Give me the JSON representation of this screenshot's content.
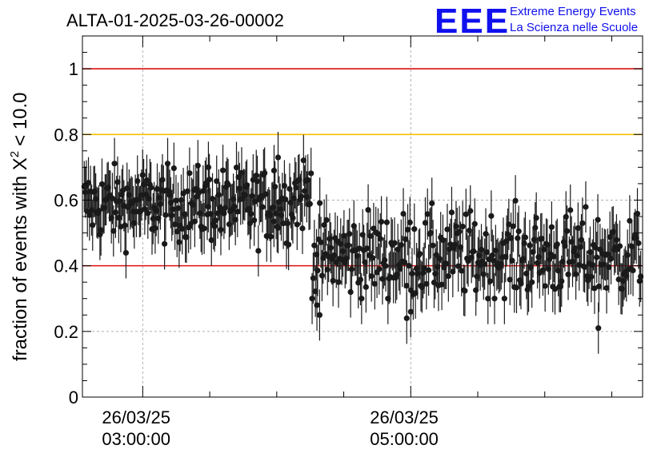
{
  "header": {
    "run_id": "ALTA-01-2025-03-26-00002",
    "logo_text": "EEE",
    "logo_line1": "Extreme Energy Events",
    "logo_line2": "La Scienza nelle Scuole"
  },
  "colors": {
    "logo_blue": "#1010ee",
    "threshold_red": "#e01010",
    "threshold_yellow": "#f5c000",
    "marker": "#1a1a1a",
    "grid": "#b0b0b0"
  },
  "chart_data": {
    "type": "scatter",
    "ylabel": "fraction of events with X² < 10.0",
    "ylabel_main": "fraction of events with X",
    "ylabel_sup": "2",
    "ylabel_tail": "< 10.0",
    "ylim": [
      0,
      1.1
    ],
    "y_ticks": [
      0,
      0.2,
      0.4,
      0.6,
      0.8,
      1
    ],
    "y_tick_labels": [
      "0",
      "0.2",
      "0.4",
      "0.6",
      "0.8",
      "1"
    ],
    "xlim_hours": [
      2.55,
      6.73
    ],
    "x_ticks": [
      {
        "hours": 3.0,
        "date": "26/03/25",
        "time": "03:00:00"
      },
      {
        "hours": 5.0,
        "date": "26/03/25",
        "time": "05:00:00"
      }
    ],
    "x_minor_ticks_hours": [
      3.5,
      4.0,
      4.5,
      5.5,
      6.0,
      6.5
    ],
    "reference_lines": [
      {
        "y": 1.0,
        "color": "#e01010"
      },
      {
        "y": 0.8,
        "color": "#f5c000"
      },
      {
        "y": 0.4,
        "color": "#e01010"
      }
    ],
    "grid": true,
    "segments": [
      {
        "t_start": 2.56,
        "t_end": 4.1,
        "mean": 0.585,
        "spread": 0.055
      },
      {
        "t_start": 4.1,
        "t_end": 4.26,
        "mean": 0.62,
        "spread": 0.06
      },
      {
        "t_start": 4.26,
        "t_end": 6.72,
        "mean": 0.43,
        "spread": 0.065
      }
    ],
    "n_points_per_segment": [
      198,
      20,
      300
    ],
    "error_bar": 0.078,
    "notable_points": [
      {
        "x": 4.01,
        "y": 0.73
      },
      {
        "x": 4.3,
        "y": 0.28
      },
      {
        "x": 4.32,
        "y": 0.25
      },
      {
        "x": 4.97,
        "y": 0.24
      },
      {
        "x": 5.0,
        "y": 0.26
      },
      {
        "x": 6.4,
        "y": 0.21
      },
      {
        "x": 3.49,
        "y": 0.7
      },
      {
        "x": 3.98,
        "y": 0.69
      }
    ]
  }
}
